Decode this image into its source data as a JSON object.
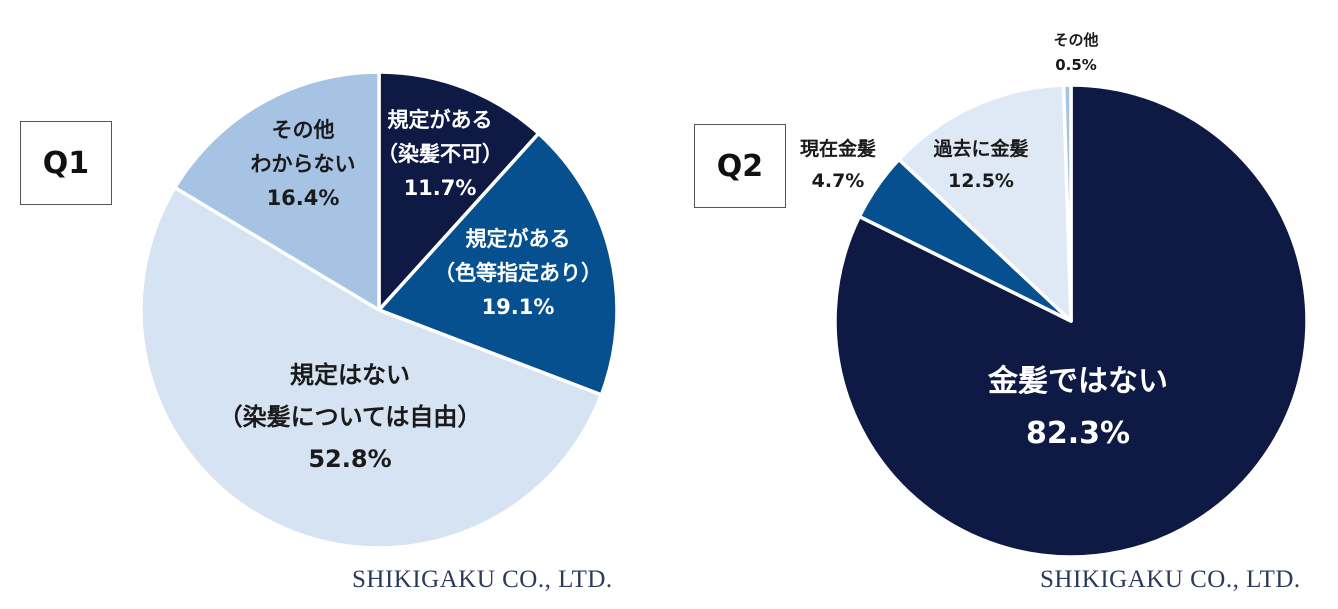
{
  "colors": {
    "navy": "#0e1a44",
    "blue": "#06508f",
    "mid": "#a6c3e3",
    "light": "#d5e3f2",
    "pale": "#dfe9f5",
    "edge": "#ffffff"
  },
  "chart_data": [
    {
      "type": "pie",
      "title": "Q1",
      "start": "12 o'clock, clockwise",
      "slices": [
        {
          "label_lines": [
            "規定がある",
            "（染髪不可）"
          ],
          "value": 11.7,
          "value_text": "11.7%",
          "color": "#0e1a44",
          "text_color": "#ffffff"
        },
        {
          "label_lines": [
            "規定がある",
            "（色等指定あり）"
          ],
          "value": 19.1,
          "value_text": "19.1%",
          "color": "#06508f",
          "text_color": "#ffffff"
        },
        {
          "label_lines": [
            "規定はない",
            "（染髪については自由）"
          ],
          "value": 52.8,
          "value_text": "52.8%",
          "color": "#d5e3f2",
          "text_color": "#1a1a1a"
        },
        {
          "label_lines": [
            "その他",
            "わからない"
          ],
          "value": 16.4,
          "value_text": "16.4%",
          "color": "#a6c3e3",
          "text_color": "#1a1a1a"
        }
      ],
      "credit": "SHIKIGAKU CO., LTD."
    },
    {
      "type": "pie",
      "title": "Q2",
      "start": "12 o'clock, clockwise",
      "slices": [
        {
          "label_lines": [
            "金髪ではない"
          ],
          "value": 82.3,
          "value_text": "82.3%",
          "color": "#0e1a44",
          "text_color": "#ffffff"
        },
        {
          "label_lines": [
            "現在金髪"
          ],
          "value": 4.7,
          "value_text": "4.7%",
          "color": "#06508f",
          "text_color": "#1a1a1a"
        },
        {
          "label_lines": [
            "過去に金髪"
          ],
          "value": 12.5,
          "value_text": "12.5%",
          "color": "#dfe9f5",
          "text_color": "#1a1a1a"
        },
        {
          "label_lines": [
            "その他"
          ],
          "value": 0.5,
          "value_text": "0.5%",
          "color": "#a6c3e3",
          "text_color": "#1a1a1a"
        }
      ],
      "credit": "SHIKIGAKU CO., LTD."
    }
  ]
}
